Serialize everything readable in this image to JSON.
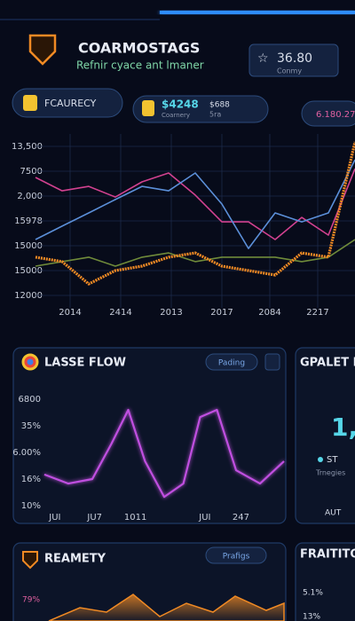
{
  "header": {
    "title": "COARMOSTAGS",
    "subtitle": "Refnir cyace ant lmaner",
    "stat": "36.80",
    "stat_label": "Conmy"
  },
  "tabs": [
    {
      "label": "FCAURECY"
    },
    {
      "amount": "$4248",
      "label": "Coarnery",
      "extra": "$688",
      "extra2": "5ra"
    },
    {
      "label": "6.180.27"
    }
  ],
  "chart_data": [
    {
      "type": "line",
      "x": [
        0,
        1,
        2,
        3,
        4,
        5,
        6,
        7,
        8,
        9,
        10,
        11,
        12
      ],
      "xlim": [
        0,
        12
      ],
      "xticks": [
        {
          "value": 1.3,
          "label": "2014"
        },
        {
          "value": 3.2,
          "label": "2414"
        },
        {
          "value": 5.1,
          "label": "2013"
        },
        {
          "value": 7,
          "label": "2017"
        },
        {
          "value": 8.8,
          "label": "2084"
        },
        {
          "value": 10.6,
          "label": "2217"
        }
      ],
      "ylim": [
        0.5,
        7.5
      ],
      "yticks": [
        {
          "value": 7,
          "label": "13,500"
        },
        {
          "value": 6,
          "label": "7500"
        },
        {
          "value": 5,
          "label": "2,000"
        },
        {
          "value": 4,
          "label": "15978"
        },
        {
          "value": 3,
          "label": "15000"
        },
        {
          "value": 2,
          "label": "15000"
        },
        {
          "value": 1,
          "label": "12000"
        }
      ],
      "grid": true,
      "series": [
        {
          "color": "#d1418f",
          "values": [
            5.75,
            5.21,
            5.39,
            4.96,
            5.57,
            5.93,
            5.04,
            3.96,
            3.96,
            3.25,
            4.14,
            3.43,
            6.1
          ]
        },
        {
          "color": "#5b8fd8",
          "values": [
            3.25,
            3.79,
            4.32,
            4.86,
            5.39,
            5.21,
            5.93,
            4.68,
            2.89,
            4.32,
            3.96,
            4.32,
            6.46
          ]
        },
        {
          "color": "#6f8a3a",
          "values": [
            2.18,
            2.36,
            2.54,
            2.18,
            2.54,
            2.71,
            2.36,
            2.54,
            2.54,
            2.54,
            2.36,
            2.54,
            3.25
          ]
        },
        {
          "color": "#f08a24",
          "values": [
            2.54,
            2.36,
            1.46,
            2.0,
            2.18,
            2.54,
            2.71,
            2.18,
            2.0,
            1.82,
            2.71,
            2.54,
            7.18
          ]
        }
      ]
    },
    {
      "type": "line",
      "title": "LASSE FLOW",
      "x": [
        0,
        1,
        2,
        2.8,
        3.5,
        4.2,
        5,
        5.8,
        6.5,
        7.2,
        8,
        9,
        10
      ],
      "xlim": [
        0,
        10
      ],
      "xticks": [
        {
          "value": 0.44,
          "label": "JUI"
        },
        {
          "value": 2.1,
          "label": "JU7"
        },
        {
          "value": 3.8,
          "label": "1011"
        },
        {
          "value": 6.7,
          "label": "JUI"
        },
        {
          "value": 8.2,
          "label": "247"
        }
      ],
      "ylim": [
        0.7,
        5.3
      ],
      "yticks": [
        {
          "value": 5,
          "label": "6800"
        },
        {
          "value": 4,
          "label": "35%"
        },
        {
          "value": 3,
          "label": "6.00%"
        },
        {
          "value": 2,
          "label": "16%"
        },
        {
          "value": 1,
          "label": "10%"
        }
      ],
      "grid": false,
      "series": [
        {
          "color": "#c04fe0",
          "values": [
            2.17,
            1.83,
            2.0,
            3.33,
            4.6,
            2.67,
            1.33,
            1.83,
            4.33,
            4.6,
            2.33,
            1.83,
            2.67
          ]
        }
      ]
    }
  ],
  "cards": [
    {
      "badge": "Pading"
    },
    {
      "title": "GPALET FLO",
      "big": "1,",
      "legend": "ST",
      "note": "Trnegies",
      "axis": "AUT"
    },
    {
      "title": "REAMETY",
      "badge": "Prafigs",
      "label": "79%"
    },
    {
      "title": "FRAITITO",
      "labels": [
        "5.1%",
        "13%"
      ]
    }
  ]
}
